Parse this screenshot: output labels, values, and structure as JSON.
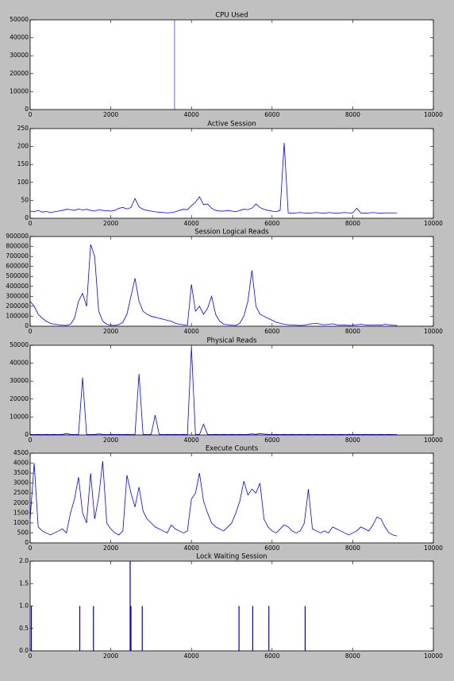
{
  "chart_data": [
    {
      "type": "vlines",
      "title": "CPU Used",
      "x": [
        3580
      ],
      "values": [
        50000
      ],
      "color": "#7f7fff",
      "xlim": [
        0,
        10000
      ],
      "xticks": [
        0,
        2000,
        4000,
        6000,
        8000,
        10000
      ],
      "ylim": [
        0,
        50000
      ],
      "yticks": [
        0,
        10000,
        20000,
        30000,
        40000,
        50000
      ]
    },
    {
      "type": "line",
      "title": "Active Session",
      "x": [
        0,
        100,
        200,
        300,
        400,
        500,
        600,
        700,
        800,
        900,
        1000,
        1100,
        1200,
        1300,
        1400,
        1500,
        1600,
        1700,
        1800,
        1900,
        2000,
        2100,
        2200,
        2300,
        2400,
        2500,
        2600,
        2700,
        2800,
        2900,
        3000,
        3100,
        3200,
        3300,
        3400,
        3500,
        3600,
        3700,
        3800,
        3900,
        4000,
        4100,
        4200,
        4300,
        4400,
        4500,
        4600,
        4700,
        4800,
        4900,
        5000,
        5100,
        5200,
        5300,
        5400,
        5500,
        5600,
        5700,
        5800,
        5900,
        6000,
        6100,
        6200,
        6300,
        6400,
        6500,
        6600,
        6700,
        6800,
        6900,
        7000,
        7100,
        7200,
        7300,
        7400,
        7500,
        7600,
        7700,
        7800,
        7900,
        8000,
        8100,
        8200,
        8300,
        8400,
        8500,
        8600,
        8700,
        8800,
        8900,
        9000,
        9100
      ],
      "values": [
        20,
        18,
        22,
        17,
        19,
        16,
        18,
        20,
        22,
        25,
        24,
        22,
        26,
        23,
        25,
        22,
        20,
        24,
        22,
        21,
        20,
        22,
        28,
        30,
        26,
        30,
        55,
        32,
        25,
        22,
        20,
        18,
        17,
        16,
        15,
        16,
        18,
        22,
        25,
        24,
        35,
        45,
        60,
        38,
        40,
        28,
        22,
        20,
        20,
        22,
        20,
        18,
        22,
        25,
        24,
        28,
        40,
        30,
        25,
        22,
        20,
        18,
        22,
        210,
        15,
        14,
        15,
        16,
        15,
        14,
        15,
        16,
        15,
        14,
        16,
        15,
        14,
        15,
        16,
        15,
        15,
        28,
        15,
        14,
        15,
        16,
        15,
        14,
        15,
        15,
        15,
        15
      ],
      "color": "#0000ff",
      "xlim": [
        0,
        10000
      ],
      "xticks": [
        0,
        2000,
        4000,
        6000,
        8000,
        10000
      ],
      "ylim": [
        0,
        250
      ],
      "yticks": [
        0,
        50,
        100,
        150,
        200,
        250
      ]
    },
    {
      "type": "line",
      "title": "Session Logical Reads",
      "x": [
        0,
        100,
        200,
        300,
        400,
        500,
        600,
        700,
        800,
        900,
        1000,
        1100,
        1200,
        1300,
        1400,
        1500,
        1600,
        1700,
        1800,
        1900,
        2000,
        2100,
        2200,
        2300,
        2400,
        2500,
        2600,
        2700,
        2800,
        2900,
        3000,
        3100,
        3200,
        3300,
        3400,
        3500,
        3600,
        3700,
        3800,
        3900,
        4000,
        4100,
        4200,
        4300,
        4400,
        4500,
        4600,
        4700,
        4800,
        4900,
        5000,
        5100,
        5200,
        5300,
        5400,
        5500,
        5600,
        5700,
        5800,
        5900,
        6000,
        6100,
        6200,
        6300,
        6400,
        6500,
        6600,
        6700,
        6800,
        6900,
        7000,
        7100,
        7200,
        7300,
        7400,
        7500,
        7600,
        7700,
        7800,
        7900,
        8000,
        8100,
        8200,
        8300,
        8400,
        8500,
        8600,
        8700,
        8800,
        8900,
        9000,
        9100
      ],
      "values": [
        250000,
        200000,
        120000,
        80000,
        50000,
        30000,
        20000,
        15000,
        10000,
        8000,
        20000,
        80000,
        250000,
        330000,
        200000,
        820000,
        700000,
        150000,
        50000,
        20000,
        10000,
        8000,
        15000,
        40000,
        120000,
        300000,
        480000,
        250000,
        150000,
        120000,
        100000,
        90000,
        80000,
        70000,
        60000,
        50000,
        30000,
        20000,
        15000,
        10000,
        420000,
        150000,
        200000,
        120000,
        180000,
        300000,
        120000,
        50000,
        20000,
        15000,
        10000,
        8000,
        30000,
        100000,
        250000,
        560000,
        200000,
        120000,
        100000,
        80000,
        60000,
        40000,
        30000,
        20000,
        15000,
        12000,
        10000,
        8000,
        10000,
        20000,
        25000,
        30000,
        20000,
        15000,
        20000,
        25000,
        15000,
        10000,
        12000,
        8000,
        10000,
        15000,
        20000,
        15000,
        10000,
        12000,
        15000,
        10000,
        20000,
        15000,
        10000,
        8000
      ],
      "color": "#0000ff",
      "xlim": [
        0,
        10000
      ],
      "xticks": [
        0,
        2000,
        4000,
        6000,
        8000,
        10000
      ],
      "ylim": [
        0,
        900000
      ],
      "yticks": [
        0,
        100000,
        200000,
        300000,
        400000,
        500000,
        600000,
        700000,
        800000,
        900000
      ]
    },
    {
      "type": "line",
      "title": "Physical Reads",
      "x": [
        0,
        100,
        200,
        300,
        400,
        500,
        600,
        700,
        800,
        900,
        1000,
        1100,
        1200,
        1300,
        1400,
        1500,
        1600,
        1700,
        1800,
        1900,
        2000,
        2100,
        2200,
        2300,
        2400,
        2500,
        2600,
        2700,
        2800,
        2900,
        3000,
        3100,
        3200,
        3300,
        3400,
        3500,
        3600,
        3700,
        3800,
        3900,
        4000,
        4100,
        4200,
        4300,
        4400,
        4500,
        4600,
        4700,
        4800,
        4900,
        5000,
        5100,
        5200,
        5300,
        5400,
        5500,
        5600,
        5700,
        5800,
        5900,
        6000,
        6100,
        6200,
        6300,
        6400,
        6500,
        6600,
        6700,
        6800,
        6900,
        7000,
        7100,
        7200,
        7300,
        7400,
        7500,
        7600,
        7700,
        7800,
        7900,
        8000,
        8100,
        8200,
        8300,
        8400,
        8500,
        8600,
        8700,
        8800,
        8900,
        9000,
        9100
      ],
      "values": [
        300,
        200,
        300,
        200,
        300,
        200,
        300,
        200,
        300,
        800,
        300,
        200,
        300,
        32000,
        300,
        200,
        300,
        600,
        300,
        200,
        300,
        200,
        300,
        200,
        300,
        200,
        300,
        34000,
        300,
        200,
        300,
        11000,
        300,
        200,
        300,
        200,
        300,
        200,
        300,
        200,
        49000,
        300,
        200,
        6000,
        300,
        200,
        300,
        200,
        300,
        200,
        300,
        200,
        300,
        200,
        300,
        600,
        300,
        800,
        500,
        300,
        200,
        300,
        200,
        300,
        200,
        300,
        200,
        300,
        200,
        300,
        200,
        300,
        200,
        300,
        200,
        300,
        200,
        300,
        200,
        300,
        200,
        300,
        200,
        300,
        200,
        300,
        200,
        300,
        200,
        300,
        200,
        200
      ],
      "color": "#0000ff",
      "xlim": [
        0,
        10000
      ],
      "xticks": [
        0,
        2000,
        4000,
        6000,
        8000,
        10000
      ],
      "ylim": [
        0,
        50000
      ],
      "yticks": [
        0,
        10000,
        20000,
        30000,
        40000,
        50000
      ]
    },
    {
      "type": "line",
      "title": "Execute Counts",
      "x": [
        0,
        100,
        200,
        300,
        400,
        500,
        600,
        700,
        800,
        900,
        1000,
        1100,
        1200,
        1300,
        1400,
        1500,
        1600,
        1700,
        1800,
        1900,
        2000,
        2100,
        2200,
        2300,
        2400,
        2500,
        2600,
        2700,
        2800,
        2900,
        3000,
        3100,
        3200,
        3300,
        3400,
        3500,
        3600,
        3700,
        3800,
        3900,
        4000,
        4100,
        4200,
        4300,
        4400,
        4500,
        4600,
        4700,
        4800,
        4900,
        5000,
        5100,
        5200,
        5300,
        5400,
        5500,
        5600,
        5700,
        5800,
        5900,
        6000,
        6100,
        6200,
        6300,
        6400,
        6500,
        6600,
        6700,
        6800,
        6900,
        7000,
        7100,
        7200,
        7300,
        7400,
        7500,
        7600,
        7700,
        7800,
        7900,
        8000,
        8100,
        8200,
        8300,
        8400,
        8500,
        8600,
        8700,
        8800,
        8900,
        9000,
        9100
      ],
      "values": [
        1200,
        4000,
        800,
        600,
        500,
        400,
        500,
        600,
        700,
        500,
        1500,
        2200,
        3300,
        1500,
        1000,
        3500,
        1200,
        2300,
        4100,
        1000,
        700,
        500,
        400,
        600,
        3400,
        2500,
        1800,
        2800,
        1600,
        1200,
        1000,
        800,
        700,
        600,
        500,
        900,
        700,
        600,
        500,
        600,
        2200,
        2500,
        3500,
        2100,
        1500,
        1000,
        800,
        700,
        600,
        800,
        1000,
        1500,
        2100,
        3100,
        2400,
        2700,
        2500,
        3000,
        1200,
        800,
        600,
        500,
        700,
        900,
        800,
        600,
        500,
        600,
        1000,
        2700,
        700,
        600,
        500,
        600,
        500,
        800,
        700,
        600,
        500,
        400,
        500,
        600,
        800,
        700,
        600,
        900,
        1300,
        1200,
        800,
        500,
        400,
        350
      ],
      "color": "#0000ff",
      "xlim": [
        0,
        10000
      ],
      "xticks": [
        0,
        2000,
        4000,
        6000,
        8000,
        10000
      ],
      "ylim": [
        0,
        4500
      ],
      "yticks": [
        0,
        500,
        1000,
        1500,
        2000,
        2500,
        3000,
        3500,
        4000,
        4500
      ]
    },
    {
      "type": "vlines",
      "title": "Lock Waiting Session",
      "x": [
        30,
        1230,
        1570,
        2480,
        2500,
        2780,
        5180,
        5520,
        5920,
        6820
      ],
      "values": [
        1,
        1,
        1,
        2,
        1,
        1,
        1,
        1,
        1,
        1
      ],
      "color": "#0000cc",
      "xlim": [
        0,
        10000
      ],
      "xticks": [
        0,
        2000,
        4000,
        6000,
        8000,
        10000
      ],
      "ylim": [
        0,
        2
      ],
      "yticks": [
        {
          "value": 0,
          "label": "0.0"
        },
        {
          "value": 0.5,
          "label": "0.5"
        },
        {
          "value": 1,
          "label": "1.0"
        },
        {
          "value": 1.5,
          "label": "1.5"
        },
        {
          "value": 2,
          "label": "2.0"
        }
      ]
    }
  ]
}
